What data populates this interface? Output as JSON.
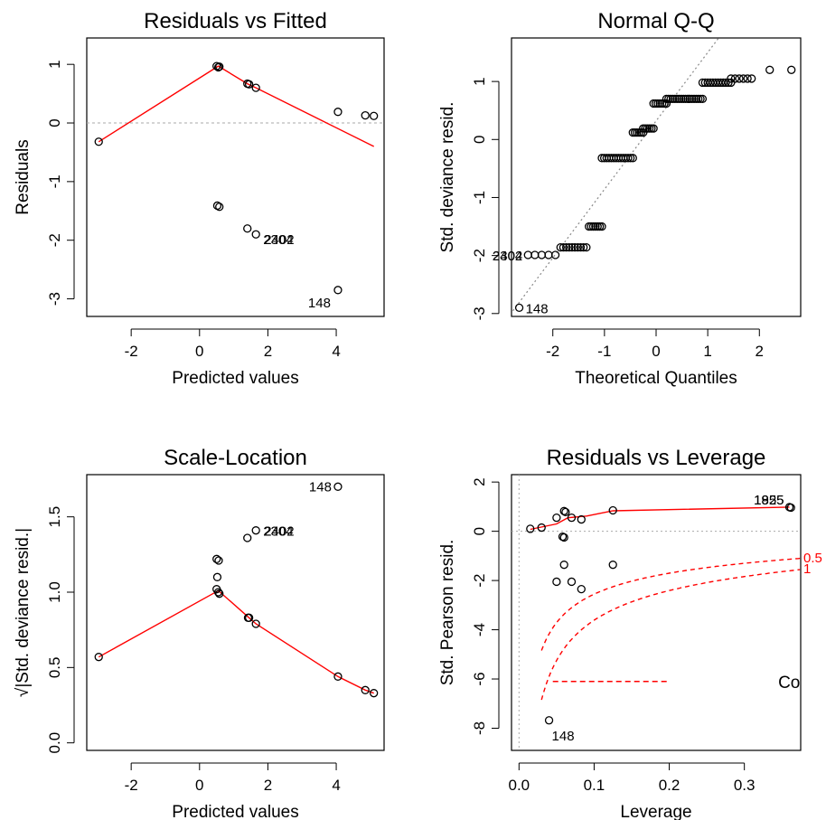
{
  "chart_data": [
    {
      "type": "scatter",
      "title": "Residuals vs Fitted",
      "xlabel": "Predicted values",
      "ylabel": "Residuals",
      "xlim": [
        -3.3,
        5.4
      ],
      "ylim": [
        -3.3,
        1.45
      ],
      "xticks": [
        -2,
        0,
        2,
        4
      ],
      "yticks": [
        -3,
        -2,
        -1,
        0,
        1
      ],
      "tick_labels_x": [
        "-2",
        "0",
        "2",
        "4"
      ],
      "tick_labels_y": [
        "-3",
        "-2",
        "-1",
        "0",
        "1"
      ],
      "points": [
        [
          -2.95,
          -0.32
        ],
        [
          0.5,
          0.97
        ],
        [
          0.55,
          0.95
        ],
        [
          0.58,
          0.96
        ],
        [
          0.52,
          -1.41
        ],
        [
          0.58,
          -1.43
        ],
        [
          1.4,
          0.67
        ],
        [
          1.45,
          0.66
        ],
        [
          1.65,
          0.6
        ],
        [
          4.05,
          0.19
        ],
        [
          4.85,
          0.13
        ],
        [
          5.1,
          0.12
        ],
        [
          1.4,
          -1.8
        ],
        [
          1.65,
          -1.9
        ],
        [
          4.05,
          -2.85
        ]
      ],
      "smooth_line": [
        [
          -2.95,
          -0.32
        ],
        [
          0.55,
          0.97
        ],
        [
          1.4,
          0.67
        ],
        [
          1.65,
          0.6
        ],
        [
          5.1,
          -0.4
        ]
      ],
      "reference_line_y": 0,
      "point_labels": [
        {
          "text": "2304",
          "x": 1.65,
          "y": -1.9
        },
        {
          "text": "2402",
          "x": 1.65,
          "y": -1.9
        },
        {
          "text": "148",
          "x": 4.05,
          "y": -2.85
        }
      ]
    },
    {
      "type": "scatter",
      "title": "Normal Q-Q",
      "xlabel": "Theoretical Quantiles",
      "ylabel": "Std. deviance resid.",
      "xlim": [
        -2.8,
        2.8
      ],
      "ylim": [
        -3.05,
        1.75
      ],
      "xticks": [
        -2,
        -1,
        0,
        1,
        2
      ],
      "yticks": [
        -3,
        -2,
        -1,
        0,
        1
      ],
      "tick_labels_x": [
        "-2",
        "-1",
        "0",
        "1",
        "2"
      ],
      "tick_labels_y": [
        "-3",
        "-2",
        "-1",
        "0",
        "1"
      ],
      "point_groups": [
        {
          "y": -2.9,
          "x_from": -2.65,
          "x_to": -2.65,
          "n": 1
        },
        {
          "y": -1.99,
          "x_from": -2.48,
          "x_to": -1.95,
          "n": 5
        },
        {
          "y": -1.86,
          "x_from": -1.85,
          "x_to": -1.35,
          "n": 10
        },
        {
          "y": -1.5,
          "x_from": -1.3,
          "x_to": -1.05,
          "n": 7
        },
        {
          "y": -0.32,
          "x_from": -1.05,
          "x_to": -0.45,
          "n": 14
        },
        {
          "y": 0.12,
          "x_from": -0.45,
          "x_to": -0.25,
          "n": 6
        },
        {
          "y": 0.19,
          "x_from": -0.25,
          "x_to": -0.05,
          "n": 6
        },
        {
          "y": 0.62,
          "x_from": -0.05,
          "x_to": 0.2,
          "n": 7
        },
        {
          "y": 0.7,
          "x_from": 0.2,
          "x_to": 0.9,
          "n": 18
        },
        {
          "y": 0.98,
          "x_from": 0.9,
          "x_to": 1.45,
          "n": 12
        },
        {
          "y": 1.05,
          "x_from": 1.45,
          "x_to": 1.85,
          "n": 6
        },
        {
          "y": 1.2,
          "x_from": 2.2,
          "x_to": 2.2,
          "n": 1
        },
        {
          "y": 1.2,
          "x_from": 2.62,
          "x_to": 2.62,
          "n": 1
        }
      ],
      "qq_line": {
        "slope": 1.18,
        "intercept": 0.32
      },
      "point_labels": [
        {
          "text": "148",
          "x": -2.65,
          "y": -2.9
        },
        {
          "text": "2304",
          "x": -2.48,
          "y": -1.99
        },
        {
          "text": "2402",
          "x": -2.48,
          "y": -1.99
        }
      ]
    },
    {
      "type": "scatter",
      "title": "Scale-Location",
      "xlabel": "Predicted values",
      "ylabel": "√|Std. deviance resid.|",
      "xlim": [
        -3.3,
        5.4
      ],
      "ylim": [
        -0.05,
        1.78
      ],
      "xticks": [
        -2,
        0,
        2,
        4
      ],
      "yticks": [
        0.0,
        0.5,
        1.0,
        1.5
      ],
      "tick_labels_x": [
        "-2",
        "0",
        "2",
        "4"
      ],
      "tick_labels_y": [
        "0.0",
        "0.5",
        "1.0",
        "1.5"
      ],
      "points": [
        [
          -2.95,
          0.57
        ],
        [
          0.5,
          1.22
        ],
        [
          0.56,
          1.21
        ],
        [
          0.52,
          1.1
        ],
        [
          0.5,
          1.02
        ],
        [
          0.55,
          1.0
        ],
        [
          0.58,
          0.99
        ],
        [
          1.4,
          1.36
        ],
        [
          1.42,
          0.83
        ],
        [
          1.45,
          0.83
        ],
        [
          1.65,
          0.79
        ],
        [
          1.65,
          1.41
        ],
        [
          4.05,
          0.44
        ],
        [
          4.85,
          0.35
        ],
        [
          5.1,
          0.33
        ],
        [
          4.05,
          1.7
        ]
      ],
      "smooth_line": [
        [
          -2.95,
          0.57
        ],
        [
          0.55,
          1.01
        ],
        [
          1.45,
          0.83
        ],
        [
          1.65,
          0.79
        ],
        [
          4.05,
          0.44
        ],
        [
          4.85,
          0.35
        ],
        [
          5.1,
          0.33
        ]
      ],
      "point_labels": [
        {
          "text": "2304",
          "x": 1.65,
          "y": 1.41
        },
        {
          "text": "2402",
          "x": 1.65,
          "y": 1.41
        },
        {
          "text": "148",
          "x": 4.05,
          "y": 1.7
        }
      ]
    },
    {
      "type": "scatter",
      "title": "Residuals vs Leverage",
      "xlabel": "Leverage",
      "ylabel": "Std. Pearson resid.",
      "xlim": [
        -0.01,
        0.375
      ],
      "ylim": [
        -8.9,
        2.3
      ],
      "xticks": [
        0.0,
        0.1,
        0.2,
        0.3
      ],
      "yticks": [
        -8,
        -6,
        -4,
        -2,
        0,
        2
      ],
      "tick_labels_x": [
        "0.0",
        "0.1",
        "0.2",
        "0.3"
      ],
      "tick_labels_y": [
        "-8",
        "-6",
        "-4",
        "-2",
        "0",
        "2"
      ],
      "points": [
        [
          0.015,
          0.1
        ],
        [
          0.03,
          0.15
        ],
        [
          0.05,
          0.55
        ],
        [
          0.06,
          0.82
        ],
        [
          0.062,
          0.78
        ],
        [
          0.058,
          -0.22
        ],
        [
          0.06,
          -0.25
        ],
        [
          0.07,
          0.55
        ],
        [
          0.083,
          0.48
        ],
        [
          0.125,
          0.85
        ],
        [
          0.06,
          -1.36
        ],
        [
          0.125,
          -1.36
        ],
        [
          0.05,
          -2.05
        ],
        [
          0.07,
          -2.05
        ],
        [
          0.083,
          -2.35
        ],
        [
          0.04,
          -7.68
        ],
        [
          0.36,
          0.98
        ],
        [
          0.362,
          0.96
        ]
      ],
      "smooth_line": [
        [
          0.015,
          0.08
        ],
        [
          0.05,
          0.3
        ],
        [
          0.065,
          0.55
        ],
        [
          0.09,
          0.62
        ],
        [
          0.125,
          0.83
        ],
        [
          0.36,
          0.98
        ]
      ],
      "reference_lines": {
        "x": 0,
        "y": 0
      },
      "cooks_distance": {
        "levels": [
          "0.5",
          "1"
        ],
        "legend_label": "Cook's distance"
      },
      "point_labels": [
        {
          "text": "1825",
          "x": 0.36,
          "y": 0.98
        },
        {
          "text": "1955",
          "x": 0.36,
          "y": 0.98
        },
        {
          "text": "148",
          "x": 0.04,
          "y": -7.68
        }
      ]
    }
  ],
  "colors": {
    "points": "#000000",
    "smooth": "#ff0000",
    "reference": "#aaaaaa",
    "qq_line": "#888888",
    "cooks": "#ff0000"
  }
}
